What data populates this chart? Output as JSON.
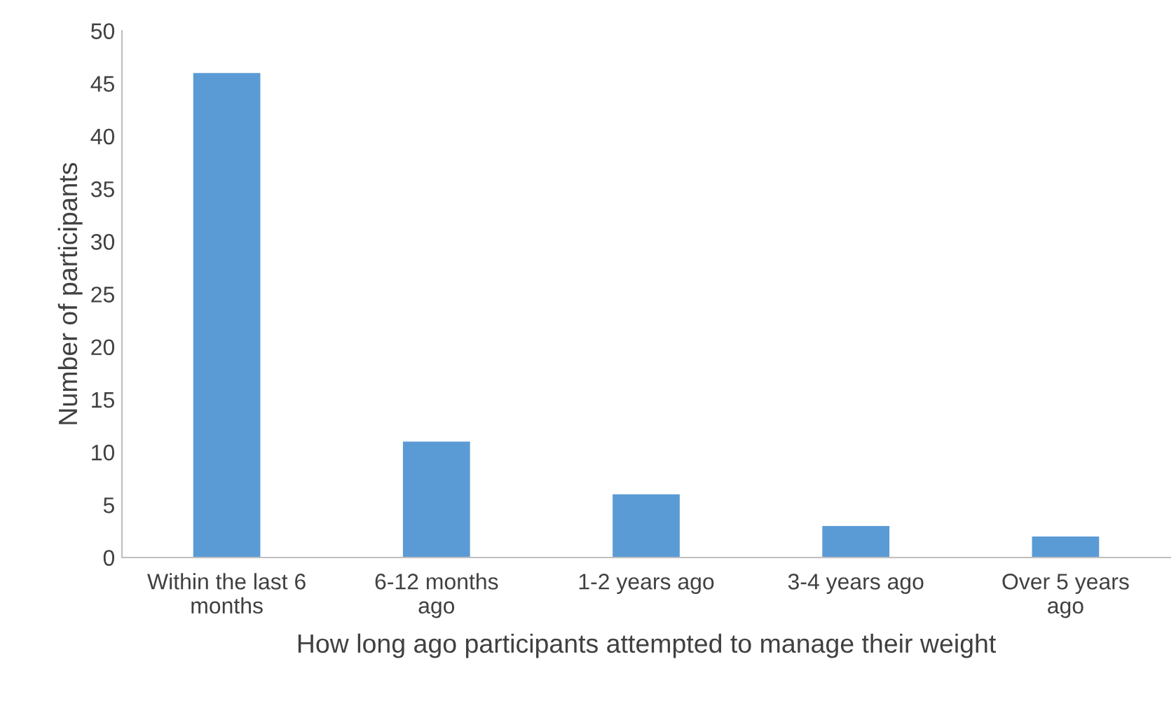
{
  "chart_data": {
    "type": "bar",
    "xlabel": "How long ago participants attempted to manage their weight",
    "ylabel": "Number of participants",
    "categories": [
      "Within the last 6\nmonths",
      "6-12 months\nago",
      "1-2 years ago",
      "3-4 years ago",
      "Over 5 years\nago"
    ],
    "values": [
      46,
      11,
      6,
      3,
      2
    ],
    "color": "#5b9bd5",
    "ylim": [
      0,
      50
    ],
    "yticks": [
      0,
      5,
      10,
      15,
      20,
      25,
      30,
      35,
      40,
      45,
      50
    ],
    "grid": false,
    "legend": false
  }
}
